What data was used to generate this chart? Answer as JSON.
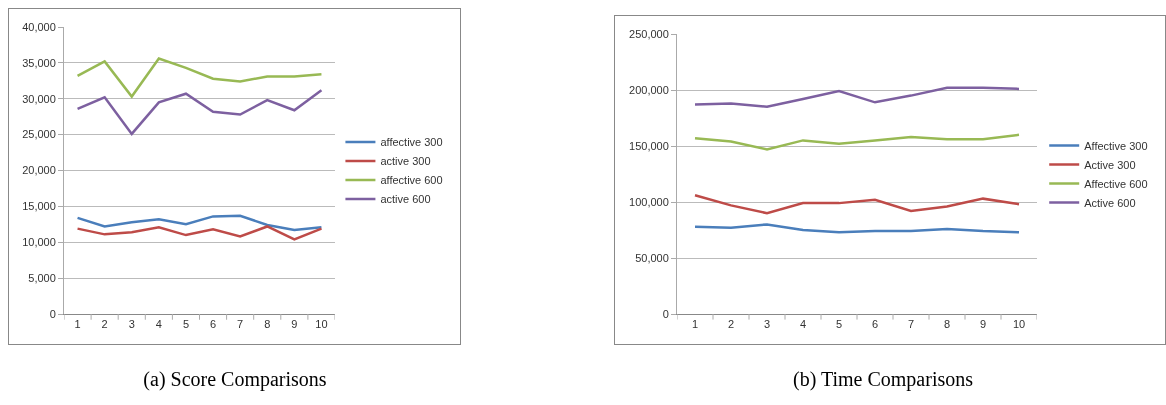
{
  "chart_data": [
    {
      "type": "line",
      "title": "(a)  Score Comparisons",
      "categories": [
        "1",
        "2",
        "3",
        "4",
        "5",
        "6",
        "7",
        "8",
        "9",
        "10"
      ],
      "ylim": [
        0,
        40000
      ],
      "yticks": [
        {
          "value": 0,
          "label": "0"
        },
        {
          "value": 5000,
          "label": "5,000"
        },
        {
          "value": 10000,
          "label": "10,000"
        },
        {
          "value": 15000,
          "label": "15,000"
        },
        {
          "value": 20000,
          "label": "20,000"
        },
        {
          "value": 25000,
          "label": "25,000"
        },
        {
          "value": 30000,
          "label": "30,000"
        },
        {
          "value": 35000,
          "label": "35,000"
        },
        {
          "value": 40000,
          "label": "40,000"
        }
      ],
      "grid": "y",
      "legend": "right",
      "marker": "none",
      "line_style": "solid",
      "series": [
        {
          "name": "affective 300",
          "color": "#4a7ebb",
          "values": [
            13400,
            12200,
            12800,
            13200,
            12500,
            13600,
            13700,
            12400,
            11700,
            12100
          ]
        },
        {
          "name": "active 300",
          "color": "#be4b48",
          "values": [
            11900,
            11100,
            11400,
            12100,
            11000,
            11800,
            10800,
            12200,
            10400,
            11900
          ]
        },
        {
          "name": "affective 600",
          "color": "#98b954",
          "values": [
            33200,
            35200,
            30300,
            35600,
            34300,
            32800,
            32400,
            33100,
            33100,
            33400
          ]
        },
        {
          "name": "active 600",
          "color": "#7d60a0",
          "values": [
            28600,
            30200,
            25100,
            29500,
            30700,
            28200,
            27800,
            29800,
            28400,
            31200
          ]
        }
      ]
    },
    {
      "type": "line",
      "title": "(b)  Time Comparisons",
      "categories": [
        "1",
        "2",
        "3",
        "4",
        "5",
        "6",
        "7",
        "8",
        "9",
        "10"
      ],
      "ylim": [
        0,
        250000
      ],
      "yticks": [
        {
          "value": 0,
          "label": "0"
        },
        {
          "value": 50000,
          "label": "50,000"
        },
        {
          "value": 100000,
          "label": "100,000"
        },
        {
          "value": 150000,
          "label": "150,000"
        },
        {
          "value": 200000,
          "label": "200,000"
        },
        {
          "value": 250000,
          "label": "250,000"
        }
      ],
      "grid": "y",
      "legend": "right",
      "marker": "none",
      "line_style": "solid",
      "series": [
        {
          "name": "Affective 300",
          "color": "#4a7ebb",
          "values": [
            78000,
            77000,
            80000,
            75000,
            73000,
            74000,
            74000,
            76000,
            74000,
            73000
          ]
        },
        {
          "name": "Active 300",
          "color": "#be4b48",
          "values": [
            106000,
            97000,
            90000,
            99000,
            99000,
            102000,
            92000,
            96000,
            103000,
            98000
          ]
        },
        {
          "name": "Affective 600",
          "color": "#98b954",
          "values": [
            157000,
            154000,
            147000,
            155000,
            152000,
            155000,
            158000,
            156000,
            156000,
            160000
          ]
        },
        {
          "name": "Active 600",
          "color": "#7d60a0",
          "values": [
            187000,
            188000,
            185000,
            192000,
            199000,
            189000,
            195000,
            202000,
            202000,
            201000
          ]
        }
      ]
    }
  ]
}
